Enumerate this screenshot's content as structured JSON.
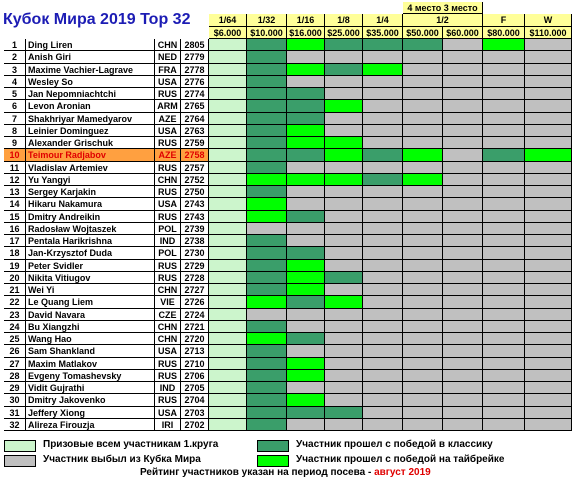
{
  "title": "Кубок Мира 2019 Top 32",
  "colors": {
    "header": "#ffff99",
    "prize_all": "#ccf5cc",
    "eliminated": "#c0c0c0",
    "classic_win": "#3a9e6a",
    "tiebreak_win": "#00ff00",
    "highlight_row": "#ffa040",
    "empty": "#ffffff"
  },
  "rounds": [
    "1/64",
    "1/32",
    "1/16",
    "1/8",
    "1/4",
    "1/2",
    "F",
    "W"
  ],
  "semifinal_places": [
    "4 место",
    "3 место"
  ],
  "prizes": [
    "$6.000",
    "$10.000",
    "$16.000",
    "$25.000",
    "$35.000",
    "$50.000",
    "$60.000",
    "$80.000",
    "$110.000"
  ],
  "players": [
    {
      "n": "1",
      "name": "Ding Liren",
      "country": "CHN",
      "rating": "2805",
      "cells": "PCWCCCGWG",
      "hl": false
    },
    {
      "n": "2",
      "name": "Anish Giri",
      "country": "NED",
      "rating": "2779",
      "cells": "PCXXXXXXX",
      "hl": false
    },
    {
      "n": "3",
      "name": "Maxime Vachier-Lagrave",
      "country": "FRA",
      "rating": "2778",
      "cells": "PCWCWXXXX",
      "hl": false
    },
    {
      "n": "4",
      "name": "Wesley So",
      "country": "USA",
      "rating": "2776",
      "cells": "PCXXXXXXX",
      "hl": false
    },
    {
      "n": "5",
      "name": "Jan Nepomniachtchi",
      "country": "RUS",
      "rating": "2774",
      "cells": "PCCXXXXXX",
      "hl": false
    },
    {
      "n": "6",
      "name": "Levon Aronian",
      "country": "ARM",
      "rating": "2765",
      "cells": "PCCWXXXXX",
      "hl": false
    },
    {
      "n": "7",
      "name": "Shakhriyar Mamedyarov",
      "country": "AZE",
      "rating": "2764",
      "cells": "PCCXXXXXX",
      "hl": false
    },
    {
      "n": "8",
      "name": "Leinier Dominguez",
      "country": "USA",
      "rating": "2763",
      "cells": "PCWXXXXXX",
      "hl": false
    },
    {
      "n": "9",
      "name": "Alexander Grischuk",
      "country": "RUS",
      "rating": "2759",
      "cells": "PCWWXXXXX",
      "hl": false
    },
    {
      "n": "10",
      "name": "Teimour Radjabov",
      "country": "AZE",
      "rating": "2758",
      "cells": "PCCWCWGCW",
      "hl": true
    },
    {
      "n": "11",
      "name": "Vladislav Artemiev",
      "country": "RUS",
      "rating": "2757",
      "cells": "PCXXXXXXX",
      "hl": false
    },
    {
      "n": "12",
      "name": "Yu Yangyi",
      "country": "CHN",
      "rating": "2752",
      "cells": "PWWWCWXXX",
      "hl": false
    },
    {
      "n": "13",
      "name": "Sergey Karjakin",
      "country": "RUS",
      "rating": "2750",
      "cells": "PCXXXXXXX",
      "hl": false
    },
    {
      "n": "14",
      "name": "Hikaru Nakamura",
      "country": "USA",
      "rating": "2743",
      "cells": "PWXXXXXXX",
      "hl": false
    },
    {
      "n": "15",
      "name": "Dmitry Andreikin",
      "country": "RUS",
      "rating": "2743",
      "cells": "PWCXXXXXX",
      "hl": false
    },
    {
      "n": "16",
      "name": "Radosław Wojtaszek",
      "country": "POL",
      "rating": "2739",
      "cells": "PXXXXXXXX",
      "hl": false
    },
    {
      "n": "17",
      "name": "Pentala Harikrishna",
      "country": "IND",
      "rating": "2738",
      "cells": "PCXXXXXXX",
      "hl": false
    },
    {
      "n": "18",
      "name": "Jan-Krzysztof Duda",
      "country": "POL",
      "rating": "2730",
      "cells": "PCCXXXXXX",
      "hl": false
    },
    {
      "n": "19",
      "name": "Peter Svidler",
      "country": "RUS",
      "rating": "2729",
      "cells": "PCWXXXXXX",
      "hl": false
    },
    {
      "n": "20",
      "name": "Nikita Vitiugov",
      "country": "RUS",
      "rating": "2728",
      "words": "",
      "cells": "PCWCXXXXX",
      "hl": false
    },
    {
      "n": "21",
      "name": "Wei Yi",
      "country": "CHN",
      "rating": "2727",
      "cells": "PCWXXXXXX",
      "hl": false
    },
    {
      "n": "22",
      "name": "Le Quang Liem",
      "country": "VIE",
      "rating": "2726",
      "cells": "PWCWXXXXX",
      "hl": false
    },
    {
      "n": "23",
      "name": "David Navara",
      "country": "CZE",
      "rating": "2724",
      "cells": "PXXXXXXXX",
      "hl": false
    },
    {
      "n": "24",
      "name": "Bu Xiangzhi",
      "country": "CHN",
      "rating": "2721",
      "cells": "PCXXXXXXX",
      "hl": false
    },
    {
      "n": "25",
      "name": "Wang Hao",
      "country": "CHN",
      "rating": "2720",
      "cells": "PWCXXXXXX",
      "hl": false
    },
    {
      "n": "26",
      "name": "Sam Shankland",
      "country": "USA",
      "rating": "2713",
      "cells": "PCXXXXXXX",
      "hl": false
    },
    {
      "n": "27",
      "name": "Maxim Matlakov",
      "country": "RUS",
      "rating": "2710",
      "cells": "PCWXXXXXX",
      "hl": false
    },
    {
      "n": "28",
      "name": "Evgeny Tomashevsky",
      "country": "RUS",
      "rating": "2706",
      "cells": "PCWXXXXXX",
      "hl": false
    },
    {
      "n": "29",
      "name": "Vidit Gujrathi",
      "country": "IND",
      "rating": "2705",
      "cells": "PCXXXXXXX",
      "hl": false
    },
    {
      "n": "30",
      "name": "Dmitry Jakovenko",
      "country": "RUS",
      "rating": "2704",
      "cells": "PCWXXXXXX",
      "hl": false
    },
    {
      "n": "31",
      "name": "Jeffery Xiong",
      "country": "USA",
      "rating": "2703",
      "cells": "PCCCXXXXX",
      "hl": false
    },
    {
      "n": "32",
      "name": "Alireza Firouzja",
      "country": "IRI",
      "rating": "2702",
      "cells": "PCXXXXXXX",
      "hl": false
    }
  ],
  "legend": {
    "prize_all": "Призовые всем участникам 1.круга",
    "eliminated": "Участник выбыл из Кубка Мира",
    "classic_win": "Участник прошел с победой в классику",
    "tiebreak_win": "Участник прошел с победой на тайбрейке",
    "rating_note": "Рейтинг участников указан на период посева -",
    "rating_date": "август 2019"
  }
}
